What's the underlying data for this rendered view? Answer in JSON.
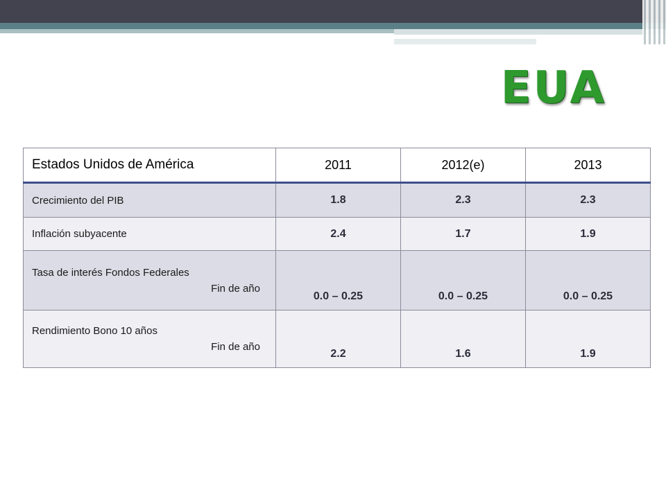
{
  "title": "EUA",
  "table": {
    "headers": [
      "Estados Unidos de América",
      "2011",
      "2012(e)",
      "2013"
    ],
    "rows": [
      {
        "label": "Crecimiento del PIB",
        "sublabel": "",
        "values": [
          "1.8",
          "2.3",
          "2.3"
        ]
      },
      {
        "label": "Inflación subyacente",
        "sublabel": "",
        "values": [
          "2.4",
          "1.7",
          "1.9"
        ]
      },
      {
        "label": "Tasa de interés Fondos Federales",
        "sublabel": "Fin de año",
        "values": [
          "0.0 – 0.25",
          "0.0 – 0.25",
          "0.0 – 0.25"
        ]
      },
      {
        "label": "Rendimiento Bono 10 años",
        "sublabel": "Fin de año",
        "values": [
          "2.2",
          "1.6",
          "1.9"
        ]
      }
    ]
  },
  "colors": {
    "title": "#2e9a2e",
    "header_band": "#43424f",
    "accent_band": "#5b7f86",
    "row_shade": "#dcdce6",
    "row_light": "#efeff4"
  }
}
